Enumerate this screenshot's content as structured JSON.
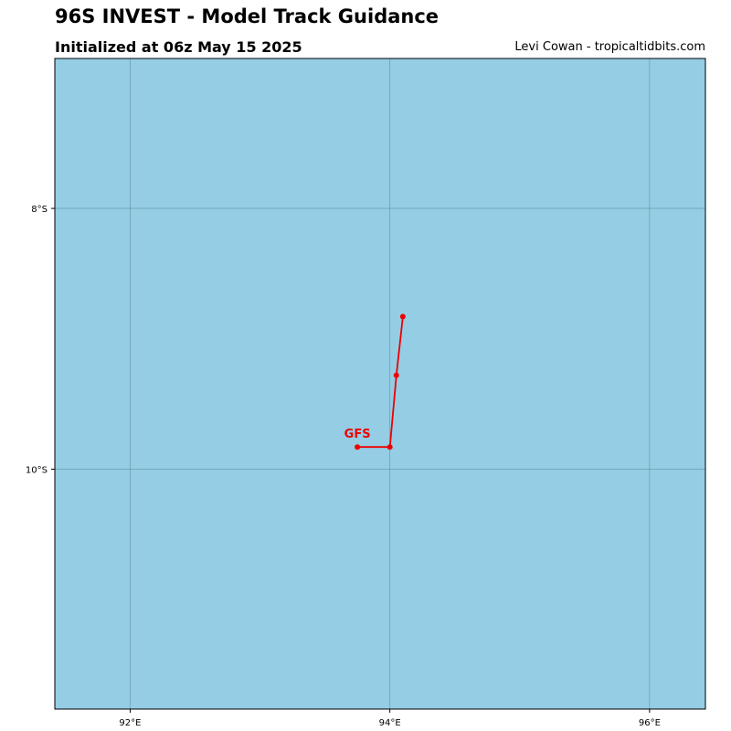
{
  "header": {
    "title": "96S INVEST - Model Track Guidance",
    "subtitle": "Initialized at 06z May 15 2025",
    "credit": "Levi Cowan - tropicaltidbits.com"
  },
  "colors": {
    "ocean": "#94cde4",
    "grid": "#3f6f7f",
    "track": "#ee0000",
    "frame": "#000000"
  },
  "map_extent": {
    "lon_range": [
      91.42,
      96.43
    ],
    "lat_range": [
      -11.84,
      -6.85
    ]
  },
  "gridlines": {
    "lons": [
      92,
      94,
      96
    ],
    "lats": [
      -8,
      -10
    ]
  },
  "tick_labels": {
    "lon": [
      "92°E",
      "94°E",
      "96°E"
    ],
    "lat": [
      "8°S",
      "10°S"
    ]
  },
  "tracks": [
    {
      "name": "GFS",
      "points": [
        {
          "lon": 93.75,
          "lat": -9.83
        },
        {
          "lon": 94.0,
          "lat": -9.83
        },
        {
          "lon": 94.05,
          "lat": -9.28
        },
        {
          "lon": 94.1,
          "lat": -8.83
        }
      ]
    }
  ]
}
